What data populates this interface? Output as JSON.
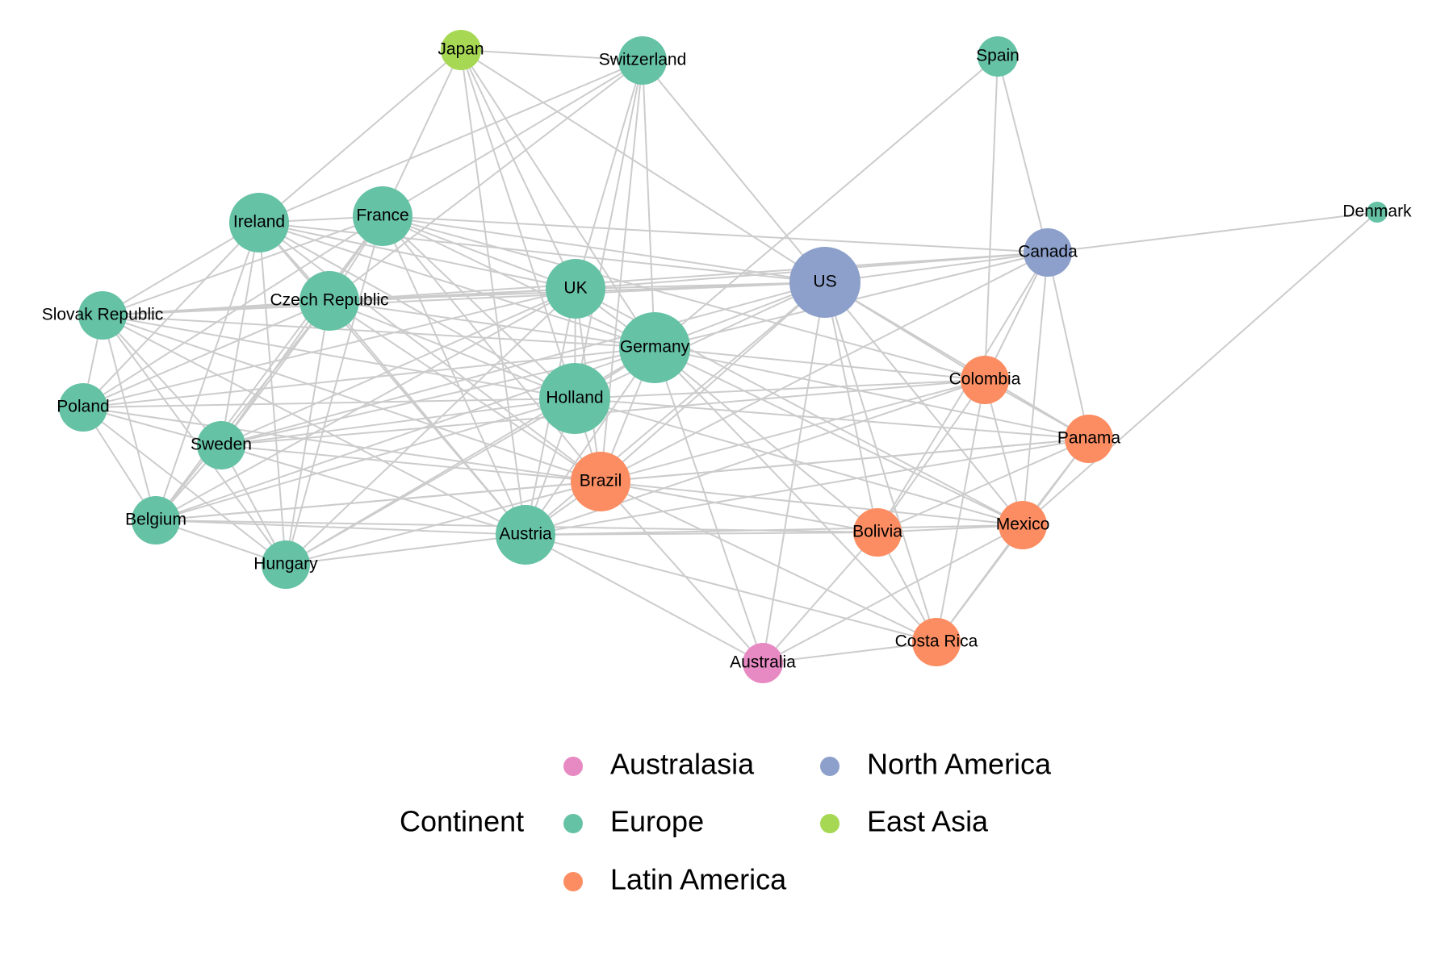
{
  "legend": {
    "title": "Continent",
    "items": [
      {
        "key": "australasia",
        "label": "Australasia",
        "color": "#e78ac3"
      },
      {
        "key": "europe",
        "label": "Europe",
        "color": "#66c2a5"
      },
      {
        "key": "latin-america",
        "label": "Latin America",
        "color": "#fc8d62"
      },
      {
        "key": "north-america",
        "label": "North America",
        "color": "#8da0cb"
      },
      {
        "key": "east-asia",
        "label": "East Asia",
        "color": "#a6d854"
      }
    ]
  },
  "nodes": [
    {
      "id": "Japan",
      "label": "Japan",
      "continent": "east-asia",
      "size": 2
    },
    {
      "id": "Switzerland",
      "label": "Switzerland",
      "continent": "europe",
      "size": 3
    },
    {
      "id": "Spain",
      "label": "Spain",
      "continent": "europe",
      "size": 2
    },
    {
      "id": "Denmark",
      "label": "Denmark",
      "continent": "europe",
      "size": 1
    },
    {
      "id": "Ireland",
      "label": "Ireland",
      "continent": "europe",
      "size": 4
    },
    {
      "id": "France",
      "label": "France",
      "continent": "europe",
      "size": 4
    },
    {
      "id": "Canada",
      "label": "Canada",
      "continent": "north-america",
      "size": 3
    },
    {
      "id": "US",
      "label": "US",
      "continent": "north-america",
      "size": 5
    },
    {
      "id": "UK",
      "label": "UK",
      "continent": "europe",
      "size": 4
    },
    {
      "id": "Slovak Republic",
      "label": "Slovak Republic",
      "continent": "europe",
      "size": 3
    },
    {
      "id": "Czech Republic",
      "label": "Czech Republic",
      "continent": "europe",
      "size": 4
    },
    {
      "id": "Germany",
      "label": "Germany",
      "continent": "europe",
      "size": 5
    },
    {
      "id": "Colombia",
      "label": "Colombia",
      "continent": "latin-america",
      "size": 3
    },
    {
      "id": "Poland",
      "label": "Poland",
      "continent": "europe",
      "size": 3
    },
    {
      "id": "Holland",
      "label": "Holland",
      "continent": "europe",
      "size": 5
    },
    {
      "id": "Panama",
      "label": "Panama",
      "continent": "latin-america",
      "size": 3
    },
    {
      "id": "Sweden",
      "label": "Sweden",
      "continent": "europe",
      "size": 3
    },
    {
      "id": "Brazil",
      "label": "Brazil",
      "continent": "latin-america",
      "size": 4
    },
    {
      "id": "Belgium",
      "label": "Belgium",
      "continent": "europe",
      "size": 3
    },
    {
      "id": "Bolivia",
      "label": "Bolivia",
      "continent": "latin-america",
      "size": 3
    },
    {
      "id": "Mexico",
      "label": "Mexico",
      "continent": "latin-america",
      "size": 3
    },
    {
      "id": "Austria",
      "label": "Austria",
      "continent": "europe",
      "size": 4
    },
    {
      "id": "Hungary",
      "label": "Hungary",
      "continent": "europe",
      "size": 3
    },
    {
      "id": "Costa Rica",
      "label": "Costa Rica",
      "continent": "latin-america",
      "size": 3
    },
    {
      "id": "Australia",
      "label": "Australia",
      "continent": "australasia",
      "size": 2
    }
  ],
  "edges": [
    [
      "Japan",
      "Switzerland"
    ],
    [
      "Japan",
      "Ireland"
    ],
    [
      "Japan",
      "France"
    ],
    [
      "Japan",
      "US"
    ],
    [
      "Japan",
      "UK"
    ],
    [
      "Japan",
      "Germany"
    ],
    [
      "Japan",
      "Holland"
    ],
    [
      "Japan",
      "Austria"
    ],
    [
      "Switzerland",
      "Ireland"
    ],
    [
      "Switzerland",
      "France"
    ],
    [
      "Switzerland",
      "US"
    ],
    [
      "Switzerland",
      "UK"
    ],
    [
      "Switzerland",
      "Germany"
    ],
    [
      "Switzerland",
      "Holland"
    ],
    [
      "Switzerland",
      "Czech Republic"
    ],
    [
      "Switzerland",
      "Brazil"
    ],
    [
      "Spain",
      "Canada"
    ],
    [
      "Spain",
      "Colombia"
    ],
    [
      "Spain",
      "Germany"
    ],
    [
      "Denmark",
      "Canada"
    ],
    [
      "Denmark",
      "Mexico"
    ],
    [
      "Ireland",
      "France"
    ],
    [
      "Ireland",
      "UK"
    ],
    [
      "Ireland",
      "US"
    ],
    [
      "Ireland",
      "Slovak Republic"
    ],
    [
      "Ireland",
      "Czech Republic"
    ],
    [
      "Ireland",
      "Germany"
    ],
    [
      "Ireland",
      "Holland"
    ],
    [
      "Ireland",
      "Poland"
    ],
    [
      "Ireland",
      "Sweden"
    ],
    [
      "Ireland",
      "Belgium"
    ],
    [
      "Ireland",
      "Hungary"
    ],
    [
      "Ireland",
      "Brazil"
    ],
    [
      "Ireland",
      "Austria"
    ],
    [
      "France",
      "UK"
    ],
    [
      "France",
      "US"
    ],
    [
      "France",
      "Canada"
    ],
    [
      "France",
      "Slovak Republic"
    ],
    [
      "France",
      "Czech Republic"
    ],
    [
      "France",
      "Germany"
    ],
    [
      "France",
      "Holland"
    ],
    [
      "France",
      "Poland"
    ],
    [
      "France",
      "Sweden"
    ],
    [
      "France",
      "Belgium"
    ],
    [
      "France",
      "Hungary"
    ],
    [
      "France",
      "Brazil"
    ],
    [
      "France",
      "Austria"
    ],
    [
      "France",
      "Colombia"
    ],
    [
      "Canada",
      "US"
    ],
    [
      "Canada",
      "UK"
    ],
    [
      "Canada",
      "Germany"
    ],
    [
      "Canada",
      "Colombia"
    ],
    [
      "Canada",
      "Panama"
    ],
    [
      "Canada",
      "Mexico"
    ],
    [
      "Canada",
      "Bolivia"
    ],
    [
      "Canada",
      "Brazil"
    ],
    [
      "Canada",
      "Czech Republic"
    ],
    [
      "US",
      "UK"
    ],
    [
      "US",
      "Germany"
    ],
    [
      "US",
      "Holland"
    ],
    [
      "US",
      "Colombia"
    ],
    [
      "US",
      "Panama"
    ],
    [
      "US",
      "Mexico"
    ],
    [
      "US",
      "Bolivia"
    ],
    [
      "US",
      "Brazil"
    ],
    [
      "US",
      "Austria"
    ],
    [
      "US",
      "Australia"
    ],
    [
      "US",
      "Costa Rica"
    ],
    [
      "US",
      "Slovak Republic"
    ],
    [
      "US",
      "Czech Republic"
    ],
    [
      "US",
      "Sweden"
    ],
    [
      "UK",
      "Slovak Republic"
    ],
    [
      "UK",
      "Czech Republic"
    ],
    [
      "UK",
      "Germany"
    ],
    [
      "UK",
      "Holland"
    ],
    [
      "UK",
      "Sweden"
    ],
    [
      "UK",
      "Belgium"
    ],
    [
      "UK",
      "Brazil"
    ],
    [
      "UK",
      "Austria"
    ],
    [
      "UK",
      "Hungary"
    ],
    [
      "UK",
      "Poland"
    ],
    [
      "UK",
      "Mexico"
    ],
    [
      "Slovak Republic",
      "Czech Republic"
    ],
    [
      "Slovak Republic",
      "Poland"
    ],
    [
      "Slovak Republic",
      "Sweden"
    ],
    [
      "Slovak Republic",
      "Belgium"
    ],
    [
      "Slovak Republic",
      "Hungary"
    ],
    [
      "Slovak Republic",
      "Germany"
    ],
    [
      "Slovak Republic",
      "Holland"
    ],
    [
      "Slovak Republic",
      "Austria"
    ],
    [
      "Slovak Republic",
      "Brazil"
    ],
    [
      "Czech Republic",
      "Poland"
    ],
    [
      "Czech Republic",
      "Sweden"
    ],
    [
      "Czech Republic",
      "Belgium"
    ],
    [
      "Czech Republic",
      "Hungary"
    ],
    [
      "Czech Republic",
      "Germany"
    ],
    [
      "Czech Republic",
      "Holland"
    ],
    [
      "Czech Republic",
      "Austria"
    ],
    [
      "Czech Republic",
      "Brazil"
    ],
    [
      "Germany",
      "Holland"
    ],
    [
      "Germany",
      "Brazil"
    ],
    [
      "Germany",
      "Austria"
    ],
    [
      "Germany",
      "Colombia"
    ],
    [
      "Germany",
      "Panama"
    ],
    [
      "Germany",
      "Mexico"
    ],
    [
      "Germany",
      "Bolivia"
    ],
    [
      "Germany",
      "Sweden"
    ],
    [
      "Germany",
      "Belgium"
    ],
    [
      "Germany",
      "Poland"
    ],
    [
      "Germany",
      "Hungary"
    ],
    [
      "Germany",
      "Costa Rica"
    ],
    [
      "Germany",
      "Australia"
    ],
    [
      "Colombia",
      "Brazil"
    ],
    [
      "Colombia",
      "Bolivia"
    ],
    [
      "Colombia",
      "Mexico"
    ],
    [
      "Colombia",
      "Panama"
    ],
    [
      "Colombia",
      "Costa Rica"
    ],
    [
      "Colombia",
      "Austria"
    ],
    [
      "Colombia",
      "Holland"
    ],
    [
      "Colombia",
      "Sweden"
    ],
    [
      "Poland",
      "Sweden"
    ],
    [
      "Poland",
      "Belgium"
    ],
    [
      "Poland",
      "Holland"
    ],
    [
      "Poland",
      "Brazil"
    ],
    [
      "Poland",
      "Hungary"
    ],
    [
      "Holland",
      "Brazil"
    ],
    [
      "Holland",
      "Austria"
    ],
    [
      "Holland",
      "Sweden"
    ],
    [
      "Holland",
      "Belgium"
    ],
    [
      "Holland",
      "Hungary"
    ],
    [
      "Holland",
      "Panama"
    ],
    [
      "Holland",
      "Mexico"
    ],
    [
      "Panama",
      "Brazil"
    ],
    [
      "Panama",
      "Bolivia"
    ],
    [
      "Panama",
      "Mexico"
    ],
    [
      "Panama",
      "Costa Rica"
    ],
    [
      "Panama",
      "Austria"
    ],
    [
      "Panama",
      "Belgium"
    ],
    [
      "Sweden",
      "Belgium"
    ],
    [
      "Sweden",
      "Hungary"
    ],
    [
      "Sweden",
      "Brazil"
    ],
    [
      "Sweden",
      "Austria"
    ],
    [
      "Brazil",
      "Belgium"
    ],
    [
      "Brazil",
      "Bolivia"
    ],
    [
      "Brazil",
      "Mexico"
    ],
    [
      "Brazil",
      "Austria"
    ],
    [
      "Brazil",
      "Costa Rica"
    ],
    [
      "Brazil",
      "Australia"
    ],
    [
      "Brazil",
      "Hungary"
    ],
    [
      "Belgium",
      "Hungary"
    ],
    [
      "Belgium",
      "Austria"
    ],
    [
      "Belgium",
      "Bolivia"
    ],
    [
      "Bolivia",
      "Mexico"
    ],
    [
      "Bolivia",
      "Austria"
    ],
    [
      "Bolivia",
      "Costa Rica"
    ],
    [
      "Bolivia",
      "Australia"
    ],
    [
      "Mexico",
      "Austria"
    ],
    [
      "Mexico",
      "Costa Rica"
    ],
    [
      "Mexico",
      "Australia"
    ],
    [
      "Austria",
      "Hungary"
    ],
    [
      "Austria",
      "Costa Rica"
    ],
    [
      "Austria",
      "Australia"
    ],
    [
      "Costa Rica",
      "Australia"
    ]
  ]
}
